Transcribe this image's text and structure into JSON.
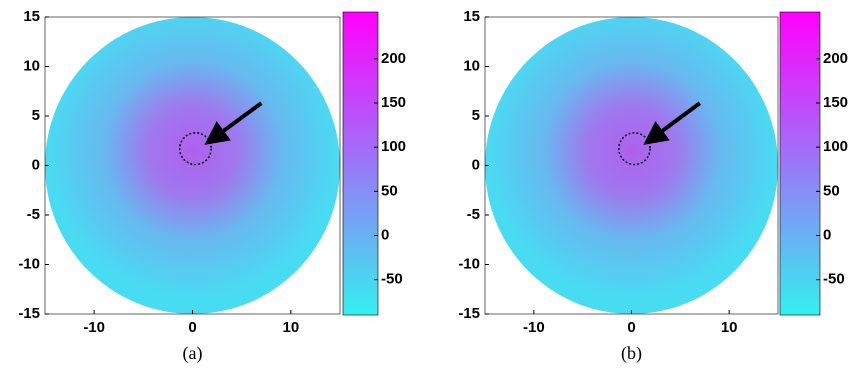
{
  "chart_data": [
    {
      "type": "heatmap",
      "caption": "(a)",
      "xlim": [
        -15,
        15
      ],
      "ylim": [
        -15,
        15
      ],
      "xticks": [
        -10,
        0,
        10
      ],
      "yticks": [
        -15,
        -10,
        -5,
        0,
        5,
        10,
        15
      ],
      "clim": [
        -90,
        253
      ],
      "cticks": [
        -50,
        0,
        50,
        100,
        150,
        200
      ],
      "cmap": [
        "#33f0f0",
        "#ff00ff"
      ]
    },
    {
      "type": "heatmap",
      "caption": "(b)",
      "xlim": [
        -15,
        15
      ],
      "ylim": [
        -15,
        15
      ],
      "xticks": [
        -10,
        0,
        10
      ],
      "yticks": [
        -15,
        -10,
        -5,
        0,
        5,
        10,
        15
      ],
      "clim": [
        -90,
        253
      ],
      "cticks": [
        -50,
        0,
        50,
        100,
        150,
        200
      ],
      "cmap": [
        "#33f0f0",
        "#ff00ff"
      ]
    }
  ]
}
